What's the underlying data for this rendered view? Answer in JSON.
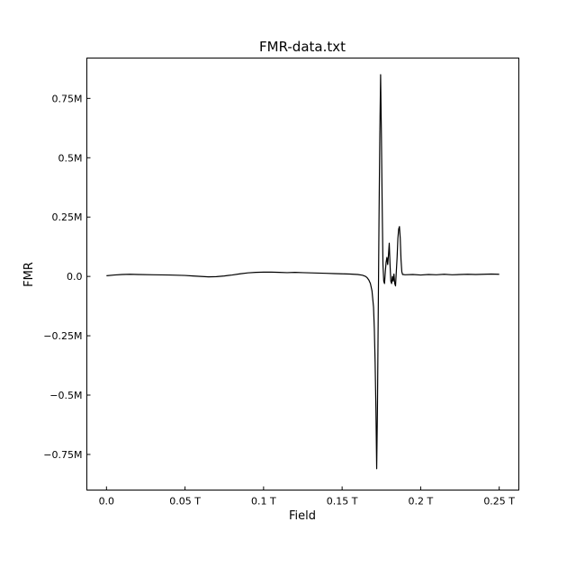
{
  "chart_data": {
    "type": "line",
    "title": "FMR-data.txt",
    "xlabel": "Field",
    "ylabel": "FMR",
    "xlim": [
      -0.0125,
      0.2625
    ],
    "ylim": [
      -0.9,
      0.92
    ],
    "x_ticks": [
      0,
      0.05,
      0.1,
      0.15,
      0.2,
      0.25
    ],
    "x_tick_labels": [
      "0.0",
      "0.05 T",
      "0.1 T",
      "0.15 T",
      "0.2 T",
      "0.25 T"
    ],
    "y_ticks": [
      -0.75,
      -0.5,
      -0.25,
      0,
      0.25,
      0.5,
      0.75
    ],
    "y_tick_labels": [
      "−0.75M",
      "−0.5M",
      "−0.25M",
      "0.0",
      "0.25M",
      "0.5M",
      "0.75M"
    ],
    "grid": false,
    "series": [
      {
        "color": "#000000",
        "x": [
          0.0,
          0.005,
          0.01,
          0.015,
          0.02,
          0.03,
          0.04,
          0.05,
          0.055,
          0.06,
          0.065,
          0.07,
          0.075,
          0.08,
          0.085,
          0.09,
          0.095,
          0.1,
          0.105,
          0.11,
          0.115,
          0.12,
          0.125,
          0.13,
          0.135,
          0.14,
          0.145,
          0.15,
          0.155,
          0.16,
          0.163,
          0.165,
          0.166,
          0.167,
          0.168,
          0.169,
          0.17,
          0.1705,
          0.171,
          0.1715,
          0.172,
          0.1725,
          0.173,
          0.1735,
          0.174,
          0.1745,
          0.175,
          0.1755,
          0.176,
          0.1765,
          0.177,
          0.1775,
          0.178,
          0.1785,
          0.179,
          0.1795,
          0.18,
          0.1805,
          0.181,
          0.1815,
          0.182,
          0.1825,
          0.183,
          0.1835,
          0.184,
          0.1845,
          0.185,
          0.1855,
          0.186,
          0.1865,
          0.187,
          0.1875,
          0.188,
          0.1885,
          0.189,
          0.19,
          0.195,
          0.2,
          0.205,
          0.21,
          0.215,
          0.22,
          0.225,
          0.23,
          0.235,
          0.24,
          0.245,
          0.25
        ],
        "y": [
          0.003,
          0.006,
          0.008,
          0.009,
          0.008,
          0.007,
          0.006,
          0.004,
          0.002,
          0.0,
          -0.002,
          -0.001,
          0.002,
          0.006,
          0.011,
          0.015,
          0.017,
          0.018,
          0.018,
          0.017,
          0.016,
          0.017,
          0.016,
          0.015,
          0.014,
          0.013,
          0.012,
          0.011,
          0.01,
          0.008,
          0.005,
          0.0,
          -0.006,
          -0.015,
          -0.03,
          -0.06,
          -0.13,
          -0.22,
          -0.36,
          -0.55,
          -0.81,
          -0.55,
          -0.15,
          0.25,
          0.6,
          0.85,
          0.6,
          0.3,
          0.05,
          -0.02,
          -0.03,
          0.02,
          0.06,
          0.08,
          0.05,
          0.09,
          0.14,
          0.05,
          -0.02,
          -0.03,
          0.0,
          -0.02,
          0.01,
          -0.03,
          -0.04,
          0.02,
          0.08,
          0.16,
          0.2,
          0.21,
          0.16,
          0.07,
          0.02,
          0.008,
          0.008,
          0.007,
          0.008,
          0.006,
          0.008,
          0.007,
          0.009,
          0.007,
          0.008,
          0.009,
          0.008,
          0.009,
          0.01,
          0.009
        ]
      }
    ]
  }
}
